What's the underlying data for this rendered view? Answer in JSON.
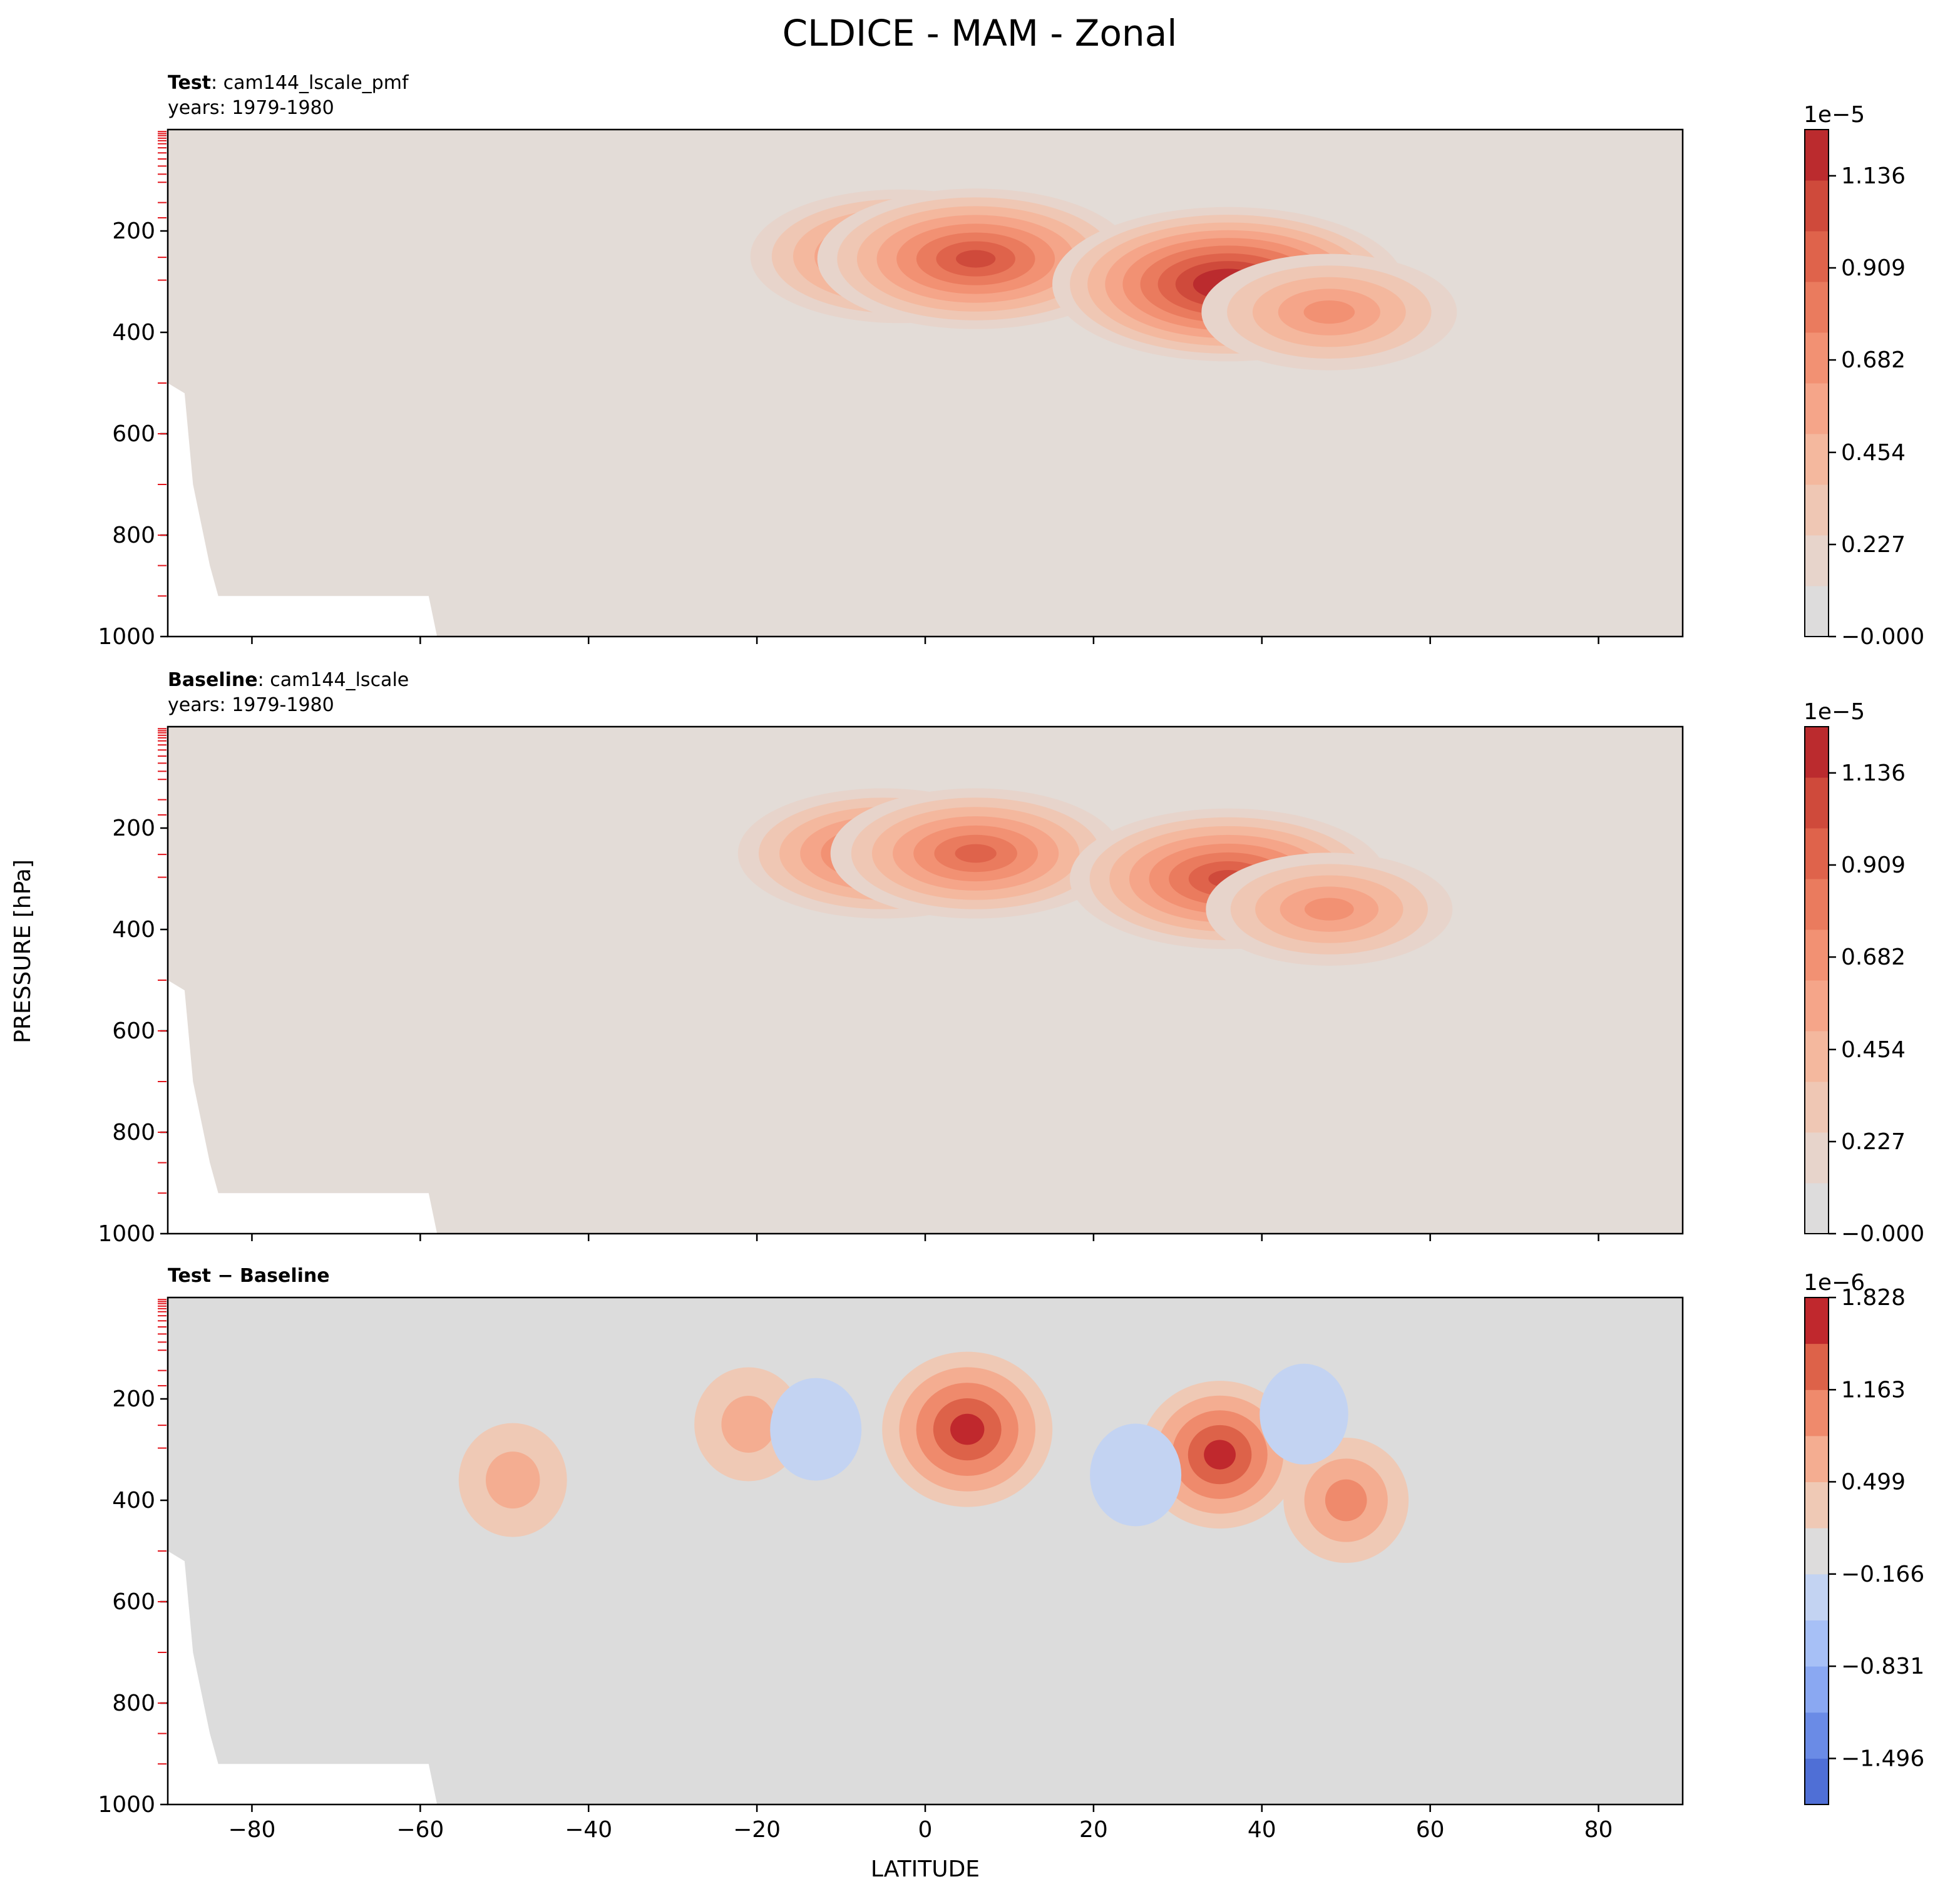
{
  "figure": {
    "title": "CLDICE - MAM - Zonal"
  },
  "axes": {
    "xlabel": "LATITUDE",
    "ylabel": "PRESSURE [hPa]"
  },
  "palette": {
    "seq": [
      "#dddcdc",
      "#e7d4cb",
      "#efc7b4",
      "#f4b89e",
      "#f5a589",
      "#f29173",
      "#ea7b5e",
      "#df634b",
      "#cf4a3b",
      "#bb2b2e"
    ],
    "div": [
      "#4f6fd6",
      "#6a8be6",
      "#8aa8f2",
      "#a7c0f6",
      "#c3d3f2",
      "#dddcdc",
      "#efc9b5",
      "#f4ad91",
      "#ef8a6c",
      "#dd6249",
      "#c0282d"
    ],
    "panel_bg_seq": "#e3dcd7",
    "panel_bg_div": "#dcdcdc"
  },
  "chart_data": [
    {
      "type": "contour",
      "panel": "test",
      "label_bold": "Test",
      "label_rest": ": cam144_lscale_pmf",
      "years": "years: 1979-1980",
      "x_ticks": [
        -80,
        -60,
        -40,
        -20,
        0,
        20,
        40,
        60,
        80
      ],
      "y_ticks": [
        200,
        400,
        600,
        800,
        1000
      ],
      "xlim": [
        -90,
        90
      ],
      "ylim": [
        1000,
        0
      ],
      "colorbar": {
        "exponent": "1e−5",
        "ticks": [
          "1.136",
          "0.909",
          "0.682",
          "0.454",
          "0.227",
          "−0.000"
        ],
        "tick_values": [
          1.136,
          0.909,
          0.682,
          0.454,
          0.227,
          0
        ],
        "range": [
          0,
          1.25
        ]
      },
      "features": [
        {
          "lat": -3,
          "p": 250,
          "peak": 0.85
        },
        {
          "lat": 6,
          "p": 255,
          "peak": 0.95
        },
        {
          "lat": 36,
          "p": 305,
          "peak": 1.15
        },
        {
          "lat": 48,
          "p": 360,
          "peak": 0.6
        }
      ]
    },
    {
      "type": "contour",
      "panel": "baseline",
      "label_bold": "Baseline",
      "label_rest": ": cam144_lscale",
      "years": "years: 1979-1980",
      "x_ticks": [
        -80,
        -60,
        -40,
        -20,
        0,
        20,
        40,
        60,
        80
      ],
      "y_ticks": [
        200,
        400,
        600,
        800,
        1000
      ],
      "xlim": [
        -90,
        90
      ],
      "ylim": [
        1000,
        0
      ],
      "colorbar": {
        "exponent": "1e−5",
        "ticks": [
          "1.136",
          "0.909",
          "0.682",
          "0.454",
          "0.227",
          "−0.000"
        ],
        "tick_values": [
          1.136,
          0.909,
          0.682,
          0.454,
          0.227,
          0
        ],
        "range": [
          0,
          1.25
        ]
      },
      "features": [
        {
          "lat": -5,
          "p": 250,
          "peak": 0.8
        },
        {
          "lat": 6,
          "p": 250,
          "peak": 0.8
        },
        {
          "lat": 36,
          "p": 300,
          "peak": 0.95
        },
        {
          "lat": 48,
          "p": 360,
          "peak": 0.55
        }
      ]
    },
    {
      "type": "contour",
      "panel": "diff",
      "label_bold": "Test − Baseline",
      "label_rest": "",
      "years": "",
      "x_ticks": [
        -80,
        -60,
        -40,
        -20,
        0,
        20,
        40,
        60,
        80
      ],
      "y_ticks": [
        200,
        400,
        600,
        800,
        1000
      ],
      "xlim": [
        -90,
        90
      ],
      "ylim": [
        1000,
        0
      ],
      "colorbar": {
        "exponent": "1e−6",
        "ticks": [
          "1.828",
          "1.163",
          "0.499",
          "−0.166",
          "−0.831",
          "−1.496"
        ],
        "tick_values": [
          1.828,
          1.163,
          0.499,
          -0.166,
          -0.831,
          -1.496
        ],
        "range": [
          -1.828,
          1.828
        ]
      },
      "features": [
        {
          "lat": 5,
          "p": 260,
          "peak": 1.8
        },
        {
          "lat": 35,
          "p": 310,
          "peak": 1.6
        },
        {
          "lat": -21,
          "p": 250,
          "peak": 0.7
        },
        {
          "lat": -49,
          "p": 360,
          "peak": 0.7
        },
        {
          "lat": 50,
          "p": 400,
          "peak": 1.0
        },
        {
          "lat": -13,
          "p": 260,
          "peak": -0.4
        },
        {
          "lat": 25,
          "p": 350,
          "peak": -0.4
        },
        {
          "lat": 45,
          "p": 230,
          "peak": -0.35
        }
      ]
    }
  ]
}
